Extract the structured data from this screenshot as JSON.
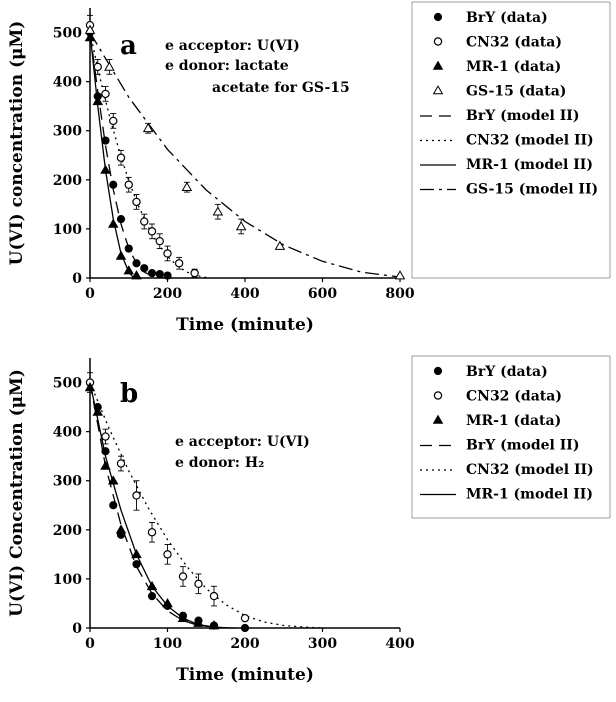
{
  "chart_data": [
    {
      "type": "scatter",
      "panel_label": "a",
      "xlabel": "Time (minute)",
      "ylabel": "U(VI) concentration (μM)",
      "xlim": [
        0,
        800
      ],
      "ylim": [
        0,
        550
      ],
      "xticks": [
        "0",
        "200",
        "400",
        "600",
        "800"
      ],
      "yticks": [
        "0",
        "100",
        "200",
        "300",
        "400",
        "500"
      ],
      "annotations": [
        "e acceptor: U(VI)",
        "e donor: lactate",
        "acetate for GS-15"
      ],
      "legend_position": "right",
      "series": [
        {
          "name": "BrY (data)",
          "kind": "points",
          "marker": "filled-circle",
          "x": [
            0,
            20,
            40,
            60,
            80,
            100,
            120,
            140,
            160,
            180,
            200
          ],
          "y": [
            500,
            370,
            280,
            190,
            120,
            60,
            30,
            20,
            10,
            8,
            5
          ]
        },
        {
          "name": "CN32 (data)",
          "kind": "points",
          "marker": "open-circle",
          "x": [
            0,
            20,
            40,
            60,
            80,
            100,
            120,
            140,
            160,
            180,
            200,
            230,
            270
          ],
          "y": [
            515,
            430,
            375,
            320,
            245,
            190,
            155,
            115,
            95,
            75,
            50,
            30,
            10
          ],
          "err": [
            20,
            15,
            15,
            15,
            15,
            15,
            15,
            15,
            15,
            15,
            15,
            12,
            8
          ]
        },
        {
          "name": "MR-1 (data)",
          "kind": "points",
          "marker": "filled-triangle",
          "x": [
            0,
            20,
            40,
            60,
            80,
            100,
            120
          ],
          "y": [
            490,
            360,
            220,
            110,
            45,
            15,
            5
          ]
        },
        {
          "name": "GS-15 (data)",
          "kind": "points",
          "marker": "open-triangle",
          "x": [
            0,
            50,
            150,
            250,
            330,
            390,
            490,
            800
          ],
          "y": [
            505,
            430,
            305,
            185,
            135,
            105,
            65,
            5
          ],
          "err": [
            15,
            15,
            10,
            10,
            15,
            15,
            0,
            0
          ]
        },
        {
          "name": "BrY (model II)",
          "kind": "line",
          "dash": "long-dash",
          "x": [
            0,
            20,
            40,
            60,
            80,
            100,
            120,
            140,
            160,
            180,
            200,
            220
          ],
          "y": [
            500,
            380,
            270,
            180,
            110,
            60,
            30,
            12,
            4,
            1,
            0,
            0
          ]
        },
        {
          "name": "CN32 (model II)",
          "kind": "line",
          "dash": "dotted",
          "x": [
            0,
            25,
            50,
            75,
            100,
            125,
            150,
            175,
            200,
            225,
            250,
            275,
            300
          ],
          "y": [
            500,
            410,
            330,
            260,
            198,
            147,
            104,
            70,
            44,
            25,
            12,
            5,
            1
          ]
        },
        {
          "name": "MR-1 (model II)",
          "kind": "line",
          "dash": "solid",
          "x": [
            0,
            20,
            40,
            60,
            80,
            100,
            110,
            120
          ],
          "y": [
            500,
            350,
            220,
            120,
            50,
            12,
            3,
            0
          ]
        },
        {
          "name": "GS-15 (model II)",
          "kind": "line",
          "dash": "dash-dot",
          "x": [
            0,
            100,
            200,
            300,
            400,
            500,
            600,
            700,
            800
          ],
          "y": [
            500,
            368,
            262,
            179,
            115,
            67,
            34,
            12,
            2
          ]
        }
      ]
    },
    {
      "type": "scatter",
      "panel_label": "b",
      "xlabel": "Time (minute)",
      "ylabel": "U(VI) Concentration (μM)",
      "xlim": [
        0,
        400
      ],
      "ylim": [
        0,
        550
      ],
      "xticks": [
        "0",
        "100",
        "200",
        "300",
        "400"
      ],
      "yticks": [
        "0",
        "100",
        "200",
        "300",
        "400",
        "500"
      ],
      "annotations": [
        "e acceptor: U(VI)",
        "e donor: H₂"
      ],
      "legend_position": "right",
      "series": [
        {
          "name": "BrY (data)",
          "kind": "points",
          "marker": "filled-circle",
          "x": [
            0,
            10,
            20,
            30,
            40,
            60,
            80,
            100,
            120,
            140,
            160,
            200
          ],
          "y": [
            500,
            450,
            360,
            250,
            190,
            130,
            65,
            45,
            25,
            15,
            5,
            0
          ]
        },
        {
          "name": "CN32 (data)",
          "kind": "points",
          "marker": "open-circle",
          "x": [
            0,
            20,
            40,
            60,
            80,
            100,
            120,
            140,
            160,
            200
          ],
          "y": [
            500,
            390,
            335,
            270,
            195,
            150,
            105,
            90,
            65,
            20
          ],
          "err": [
            20,
            15,
            15,
            30,
            20,
            20,
            20,
            20,
            20,
            5
          ]
        },
        {
          "name": "MR-1 (data)",
          "kind": "points",
          "marker": "filled-triangle",
          "x": [
            0,
            10,
            20,
            30,
            40,
            60,
            80,
            100,
            120,
            140,
            160
          ],
          "y": [
            490,
            440,
            330,
            300,
            200,
            150,
            85,
            50,
            20,
            10,
            5
          ]
        },
        {
          "name": "BrY (model II)",
          "kind": "line",
          "dash": "long-dash",
          "x": [
            0,
            20,
            40,
            60,
            80,
            100,
            120,
            140,
            160,
            180,
            200
          ],
          "y": [
            500,
            330,
            210,
            125,
            70,
            35,
            15,
            5,
            2,
            0,
            0
          ]
        },
        {
          "name": "CN32 (model II)",
          "kind": "line",
          "dash": "dotted",
          "x": [
            0,
            25,
            50,
            75,
            100,
            125,
            150,
            175,
            200,
            225,
            250,
            275,
            300
          ],
          "y": [
            500,
            405,
            320,
            245,
            180,
            125,
            80,
            48,
            25,
            12,
            5,
            2,
            0
          ]
        },
        {
          "name": "MR-1 (model II)",
          "kind": "line",
          "dash": "solid",
          "x": [
            0,
            20,
            40,
            60,
            80,
            100,
            120,
            140,
            160,
            180
          ],
          "y": [
            500,
            350,
            240,
            150,
            85,
            45,
            20,
            7,
            2,
            0
          ]
        }
      ]
    }
  ]
}
